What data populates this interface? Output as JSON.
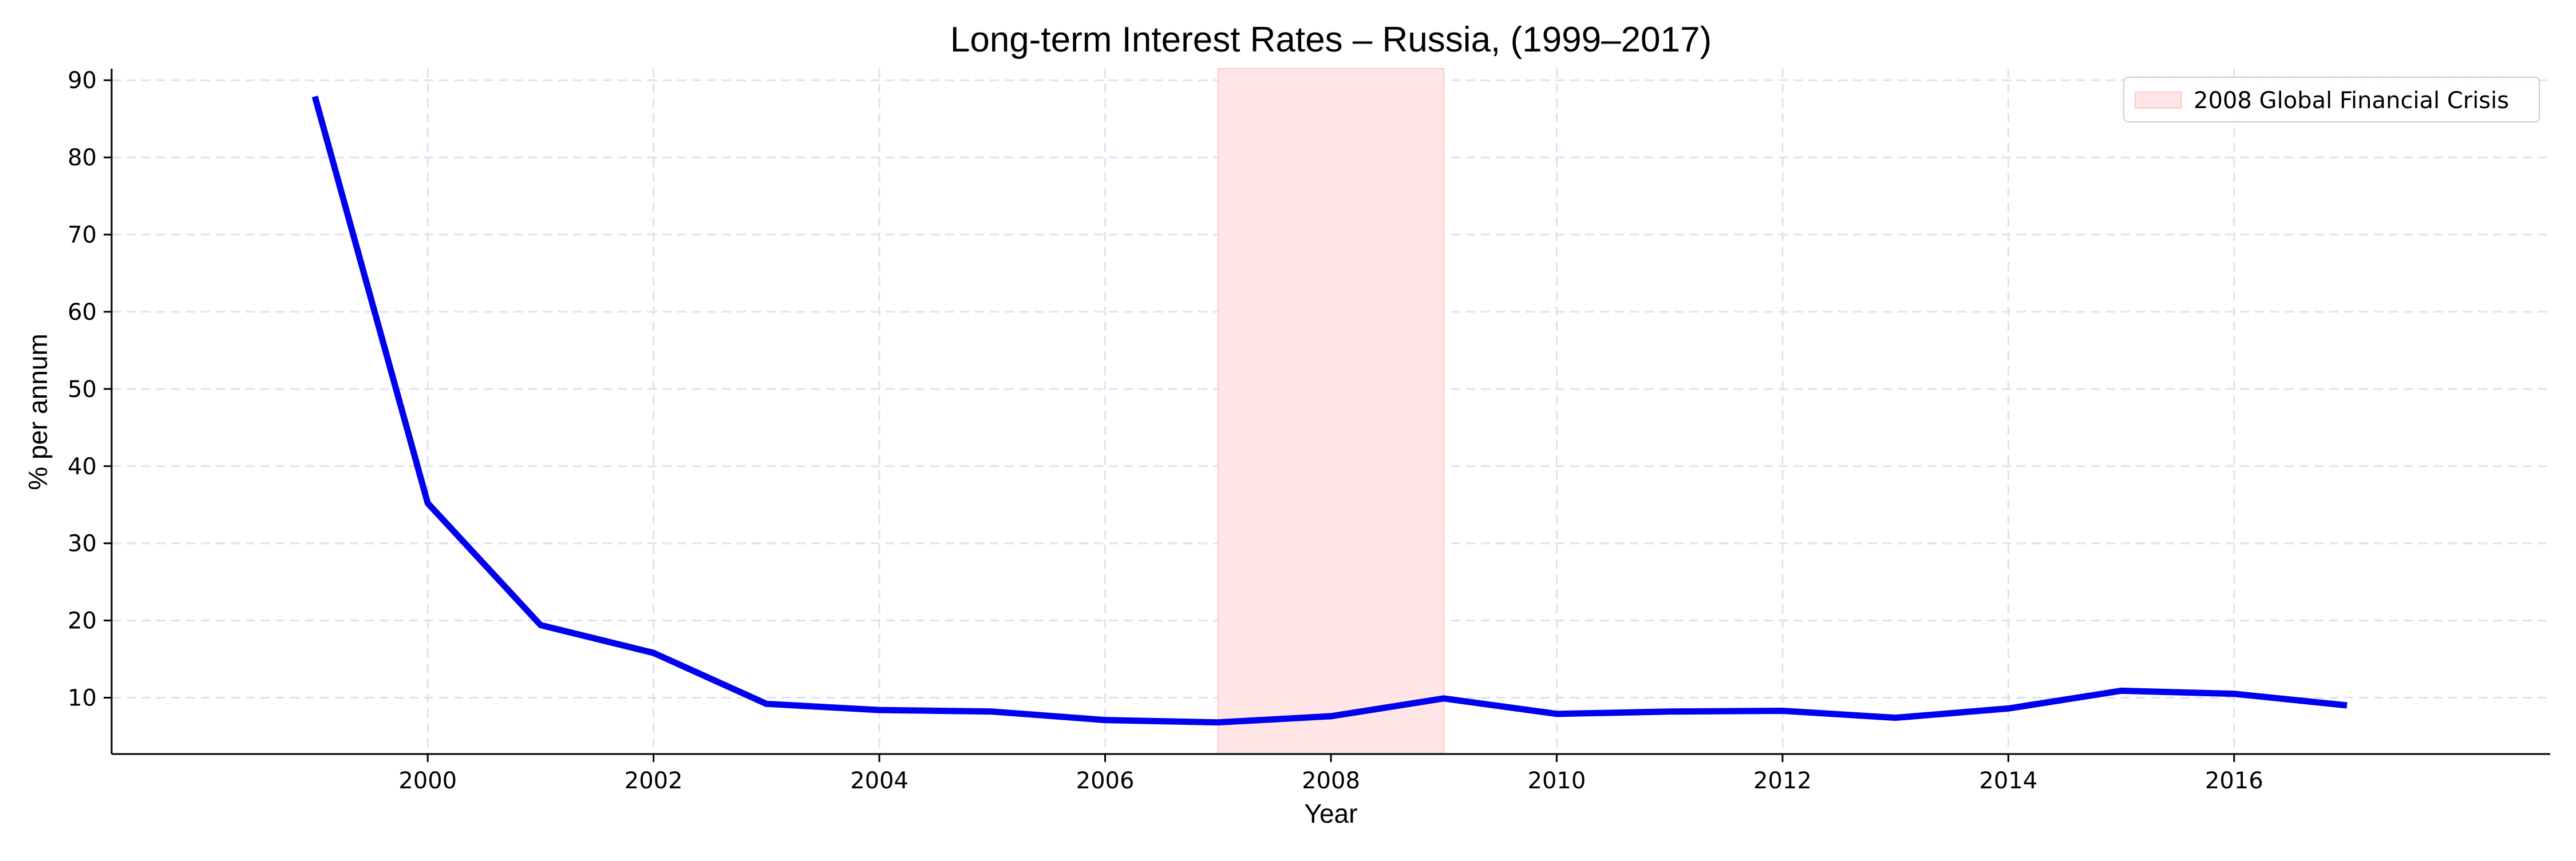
{
  "chart_data": {
    "type": "line",
    "title": "Long-term Interest Rates – Russia, (1999–2017)",
    "xlabel": "Year",
    "ylabel": "% per annum",
    "x": [
      1999,
      2000,
      2001,
      2002,
      2003,
      2004,
      2005,
      2006,
      2007,
      2008,
      2009,
      2010,
      2011,
      2012,
      2013,
      2014,
      2015,
      2016,
      2017
    ],
    "series": [
      {
        "values": [
          87.9,
          35.2,
          19.4,
          15.8,
          9.2,
          8.4,
          8.2,
          7.1,
          6.8,
          7.6,
          9.9,
          7.9,
          8.2,
          8.3,
          7.4,
          8.6,
          10.9,
          10.5,
          9.0
        ],
        "color": "#0000ee"
      }
    ],
    "xlim": [
      1997.2,
      2018.8
    ],
    "ylim": [
      2.7,
      91.5
    ],
    "xticks": [
      2000,
      2002,
      2004,
      2006,
      2008,
      2010,
      2012,
      2014,
      2016
    ],
    "yticks": [
      10,
      20,
      30,
      40,
      50,
      60,
      70,
      80,
      90
    ],
    "shaded_region": {
      "x_start": 2007,
      "x_end": 2009,
      "label": "2008 Global Financial Crisis",
      "color": "#ffe5e6",
      "edge_color": "#f5cccc"
    },
    "grid": true,
    "grid_style": "dashed",
    "grid_color": "#e0e0f5",
    "legend_position": "top-right"
  }
}
